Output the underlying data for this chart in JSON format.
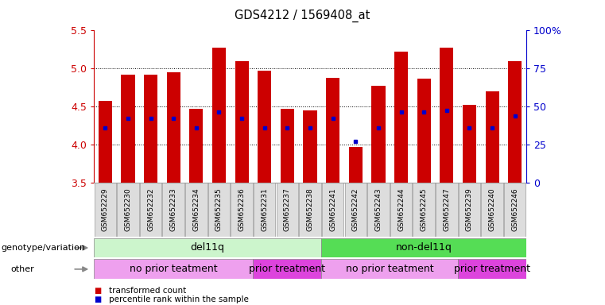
{
  "title": "GDS4212 / 1569408_at",
  "samples": [
    "GSM652229",
    "GSM652230",
    "GSM652232",
    "GSM652233",
    "GSM652234",
    "GSM652235",
    "GSM652236",
    "GSM652231",
    "GSM652237",
    "GSM652238",
    "GSM652241",
    "GSM652242",
    "GSM652243",
    "GSM652244",
    "GSM652245",
    "GSM652247",
    "GSM652239",
    "GSM652240",
    "GSM652246"
  ],
  "bar_values": [
    4.58,
    4.92,
    4.92,
    4.95,
    4.47,
    5.27,
    5.1,
    4.97,
    4.47,
    4.45,
    4.88,
    3.97,
    4.78,
    5.22,
    4.87,
    5.28,
    4.52,
    4.7,
    5.1
  ],
  "blue_dot_values": [
    4.22,
    4.35,
    4.35,
    4.35,
    4.22,
    4.43,
    4.35,
    4.22,
    4.22,
    4.22,
    4.35,
    4.05,
    4.22,
    4.43,
    4.43,
    4.45,
    4.22,
    4.22,
    4.38
  ],
  "ylim_left": [
    3.5,
    5.5
  ],
  "yticks_left": [
    3.5,
    4.0,
    4.5,
    5.0,
    5.5
  ],
  "yticks_right": [
    0,
    25,
    50,
    75,
    100
  ],
  "bar_color": "#cc0000",
  "blue_dot_color": "#0000cc",
  "bar_bottom": 3.5,
  "genotype_groups": [
    {
      "label": "del11q",
      "start": 0,
      "end": 10,
      "color": "#ccf5cc"
    },
    {
      "label": "non-del11q",
      "start": 10,
      "end": 19,
      "color": "#55dd55"
    }
  ],
  "other_groups": [
    {
      "label": "no prior teatment",
      "start": 0,
      "end": 7,
      "color": "#eea0ee"
    },
    {
      "label": "prior treatment",
      "start": 7,
      "end": 10,
      "color": "#dd44dd"
    },
    {
      "label": "no prior teatment",
      "start": 10,
      "end": 16,
      "color": "#eea0ee"
    },
    {
      "label": "prior treatment",
      "start": 16,
      "end": 19,
      "color": "#dd44dd"
    }
  ],
  "genotype_label": "genotype/variation",
  "other_label": "other",
  "legend_items": [
    "transformed count",
    "percentile rank within the sample"
  ],
  "legend_colors": [
    "#cc0000",
    "#0000cc"
  ],
  "bg_color": "#ffffff",
  "tick_label_color": "#cc0000",
  "right_axis_color": "#0000cc",
  "grid_dotted_values": [
    4.0,
    4.5,
    5.0
  ]
}
